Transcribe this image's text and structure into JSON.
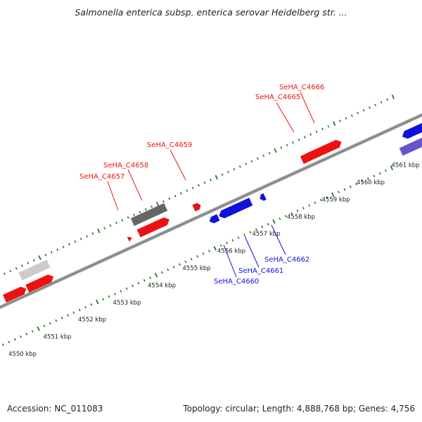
{
  "title": "Salmonella enterica subsp. enterica serovar Heidelberg str. ...",
  "footer": {
    "accession": "Accession: NC_011083",
    "stats": "Topology: circular; Length: 4,888,768 bp; Genes: 4,756"
  },
  "colors": {
    "forward": "#ee1111",
    "reverse": "#1111dd",
    "reverse_light": "#6655cc",
    "gray_dark": "#666666",
    "gray_light": "#cccccc",
    "tick": "#1e7a1e",
    "backbone": "#8a8a8a"
  },
  "scale": {
    "unit": "kbp",
    "labels": [
      "4550 kbp",
      "4551 kbp",
      "4552 kbp",
      "4553 kbp",
      "4554 kbp",
      "4555 kbp",
      "4556 kbp",
      "4557 kbp",
      "4558 kbp",
      "4559 kbp",
      "4560 kbp",
      "4561 kbp"
    ]
  },
  "genes": {
    "forward": [
      {
        "label": "SeHA_C4657"
      },
      {
        "label": "SeHA_C4658"
      },
      {
        "label": "SeHA_C4659"
      },
      {
        "label": "SeHA_C4665"
      },
      {
        "label": "SeHA_C4666"
      }
    ],
    "reverse": [
      {
        "label": "SeHA_C4660"
      },
      {
        "label": "SeHA_C4661"
      },
      {
        "label": "SeHA_C4662"
      }
    ]
  }
}
